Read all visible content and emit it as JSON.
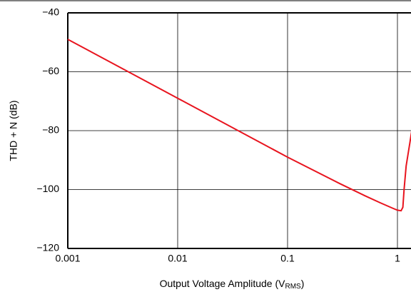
{
  "chart_data": {
    "type": "line",
    "ylabel": "THD + N (dB)",
    "xlabel": [
      "Output Voltage Amplitude (V",
      "RMS",
      ")"
    ],
    "xscale": "log",
    "x": [
      0.001,
      0.01,
      0.1,
      0.3,
      0.5,
      0.7,
      0.9,
      1.0,
      1.08,
      1.12,
      1.15,
      1.2,
      1.3,
      1.35
    ],
    "series": [
      {
        "name": "THD+N",
        "color": "#e8141e",
        "values": [
          -49,
          -69,
          -89,
          -98,
          -102,
          -104.5,
          -106.3,
          -107,
          -107.2,
          -106,
          -100,
          -92,
          -84,
          -80
        ]
      }
    ],
    "xlim": [
      0.001,
      10
    ],
    "xticks": [
      0.001,
      0.01,
      0.1,
      1
    ],
    "ylim": [
      -120,
      -40
    ],
    "yticks": [
      {
        "value": -120,
        "label": "−120"
      },
      {
        "value": -100,
        "label": "−100"
      },
      {
        "value": -80,
        "label": "−80"
      },
      {
        "value": -60,
        "label": "−60"
      },
      {
        "value": -40,
        "label": "−40"
      }
    ],
    "grid": true
  }
}
